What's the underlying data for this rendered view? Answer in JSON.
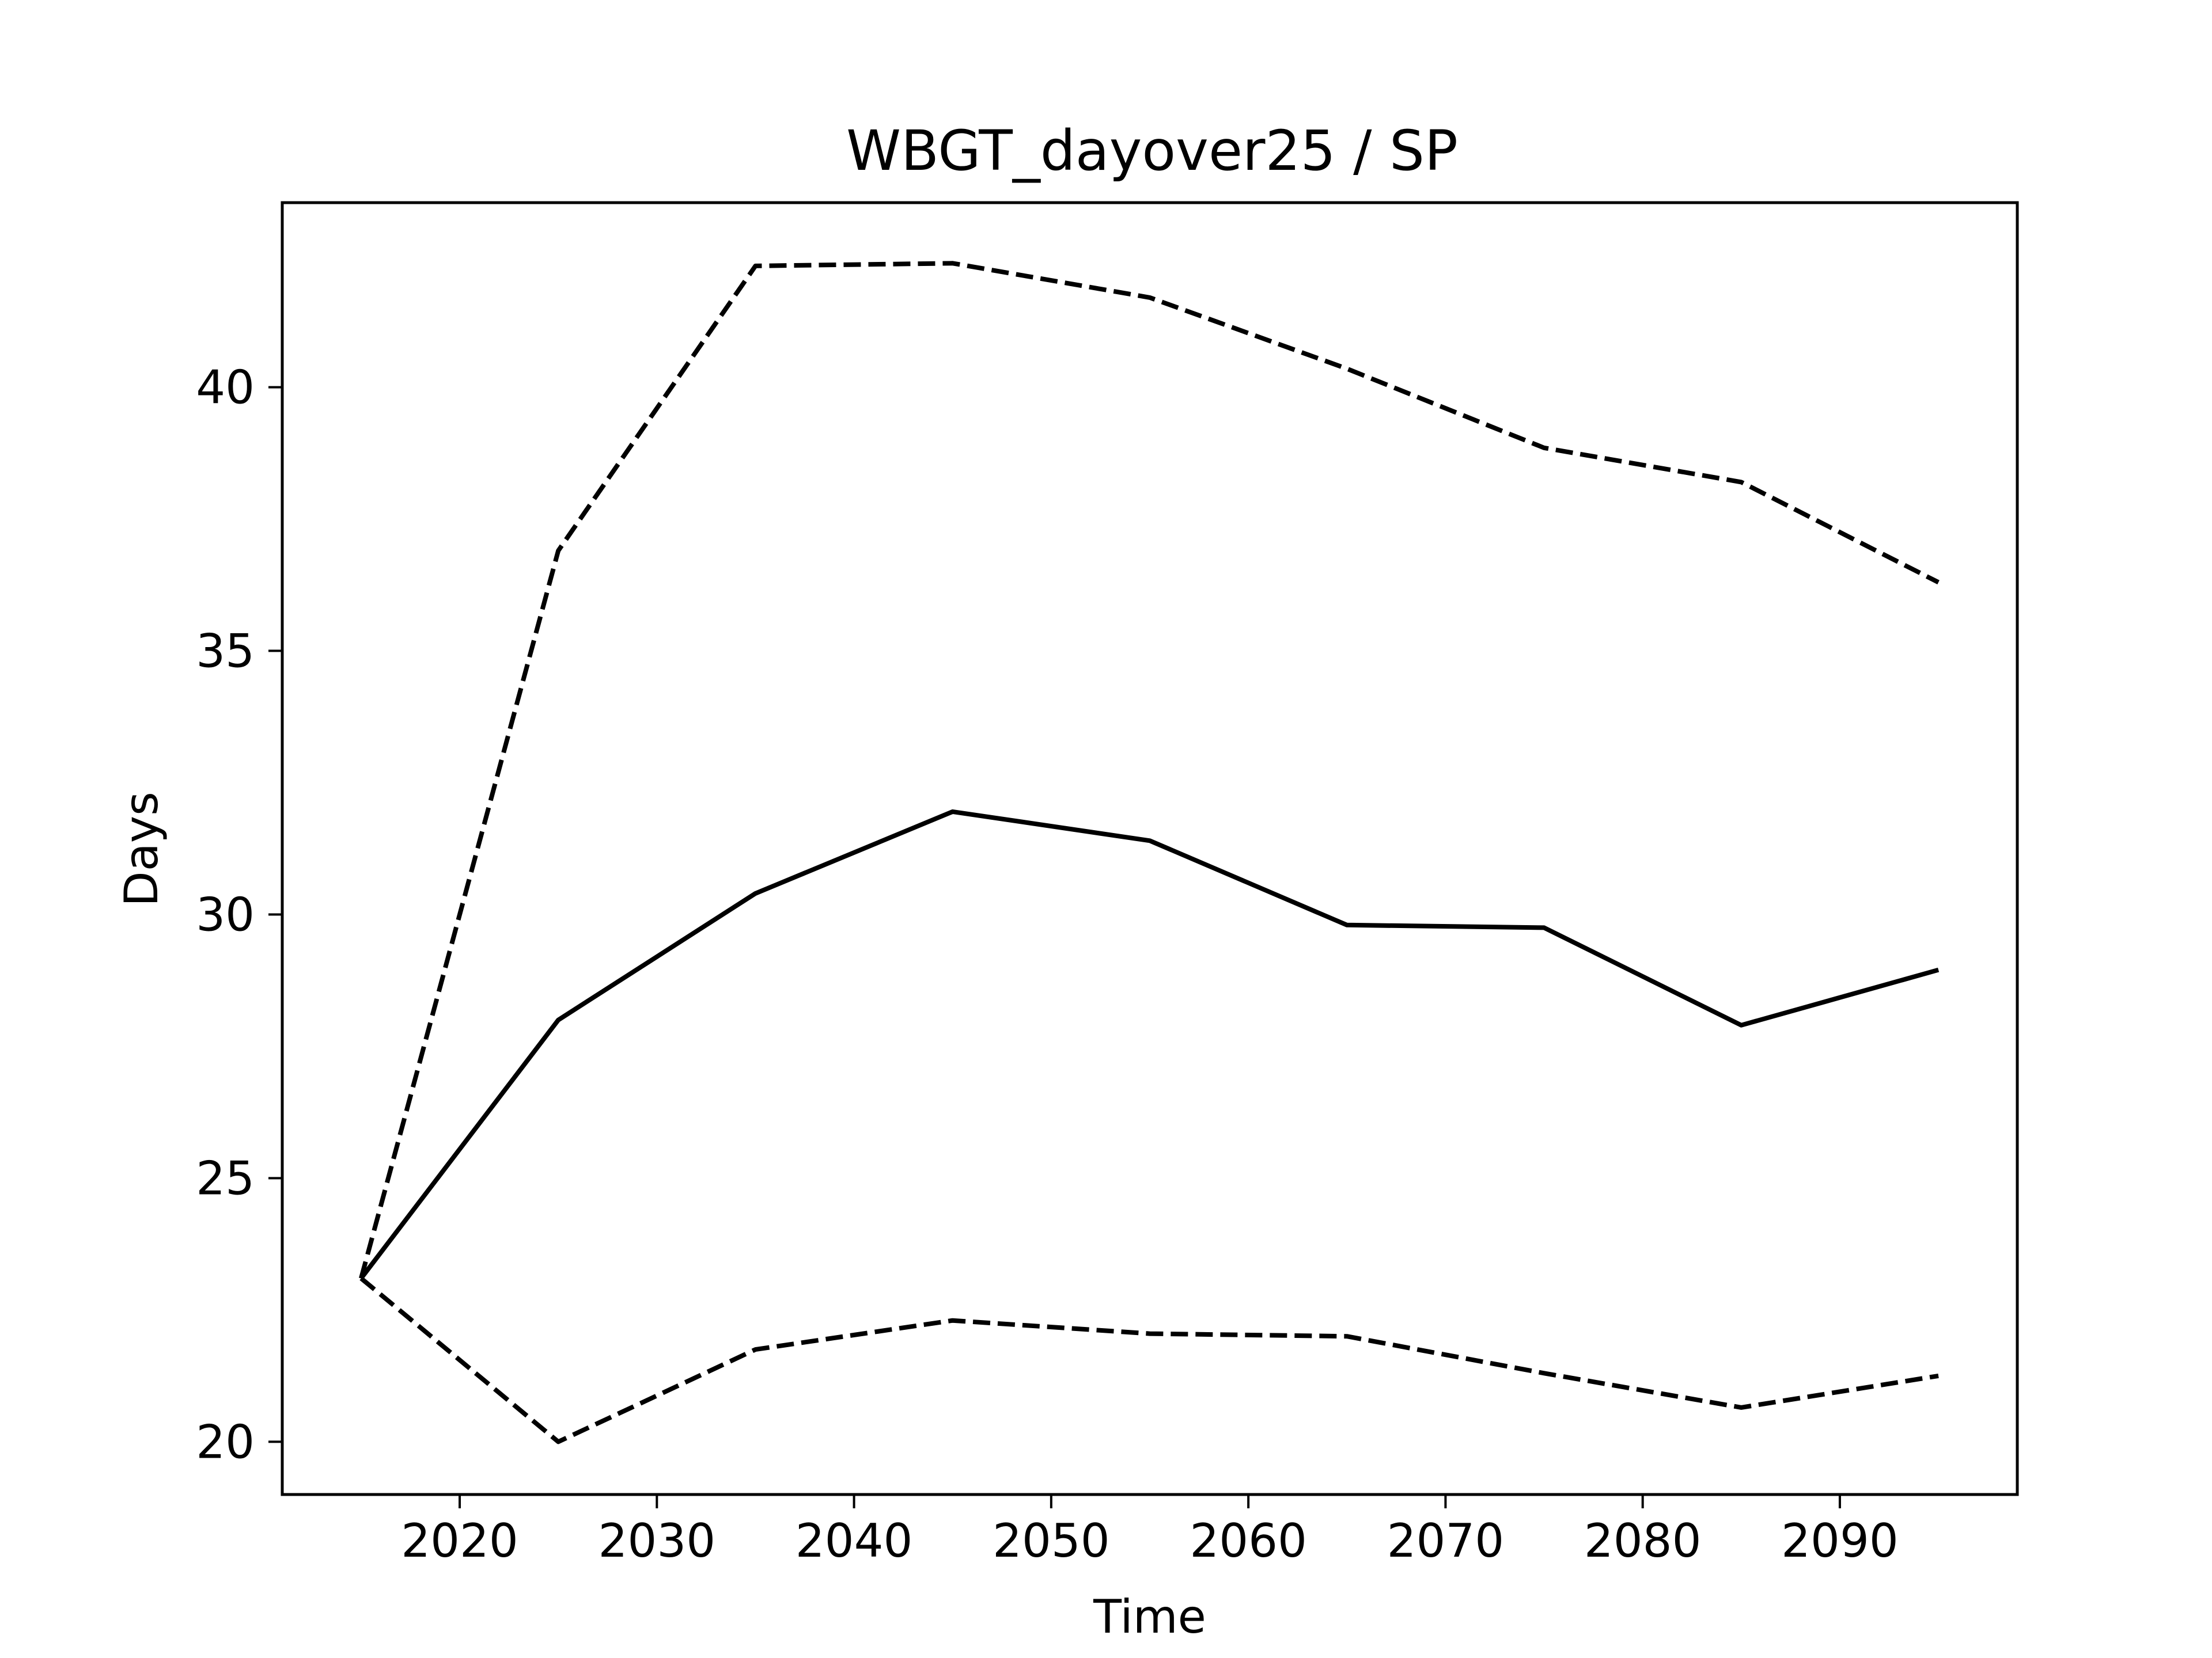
{
  "chart_data": {
    "type": "line",
    "title": "WBGT_dayover25 / SP",
    "xlabel": "Time",
    "ylabel": "Days",
    "xlim": [
      2011,
      2099
    ],
    "ylim": [
      19,
      43.5
    ],
    "xticks": [
      2020,
      2030,
      2040,
      2050,
      2060,
      2070,
      2080,
      2090
    ],
    "yticks": [
      20,
      25,
      30,
      35,
      40
    ],
    "grid": false,
    "legend": "none",
    "x": [
      2015,
      2025,
      2035,
      2045,
      2055,
      2065,
      2075,
      2085,
      2095
    ],
    "series": [
      {
        "style": "dashed",
        "color": "#000000",
        "values": [
          23.1,
          36.9,
          42.3,
          42.35,
          41.7,
          40.35,
          38.85,
          38.2,
          36.3
        ]
      },
      {
        "style": "solid",
        "color": "#000000",
        "values": [
          23.1,
          28.0,
          30.4,
          31.95,
          31.4,
          29.8,
          29.75,
          27.9,
          28.95
        ]
      },
      {
        "style": "dashed",
        "color": "#000000",
        "values": [
          23.1,
          20.0,
          21.75,
          22.3,
          22.05,
          22.0,
          21.3,
          20.65,
          21.25
        ]
      }
    ]
  }
}
